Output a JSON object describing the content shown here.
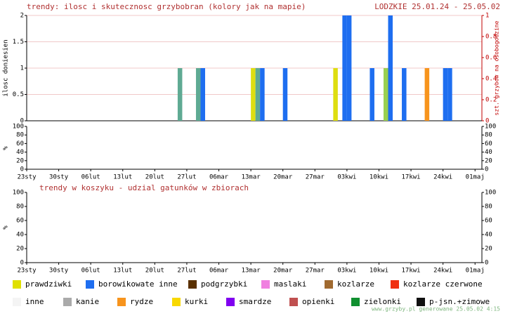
{
  "chart_data": [
    {
      "type": "bar",
      "title": "trendy: ilosc i skutecznosc grzybobran (kolory jak na mapie)",
      "subtitle": "LODZKIE 25.01.24 - 25.05.02",
      "ylabel": "ilosc doniesien",
      "y2label": "szt. grzybow na osobogodzine",
      "xlim": [
        0,
        99.5
      ],
      "ylim": [
        0,
        2
      ],
      "yticks": [
        0,
        0.5,
        1,
        1.5,
        2
      ],
      "y2lim": [
        0,
        1
      ],
      "y2ticks": [
        0,
        0.2,
        0.4,
        0.6,
        0.8,
        1
      ],
      "grid": true,
      "x": [
        33,
        37,
        38,
        49,
        50,
        51,
        56,
        67,
        69,
        70,
        75,
        78,
        79,
        82,
        87,
        91,
        92
      ],
      "values": [
        1,
        1,
        1,
        1,
        1,
        1,
        1,
        1,
        2,
        2,
        1,
        1,
        2,
        1,
        1,
        1,
        1
      ],
      "colors": [
        "#5faa93",
        "#5faa93",
        "#1e6ef0",
        "#dede10",
        "#5faa93",
        "#1e6ef0",
        "#1e6ef0",
        "#dede10",
        "#1e6ef0",
        "#1e6ef0",
        "#1e6ef0",
        "#9ad050",
        "#1e6ef0",
        "#1e6ef0",
        "#f7941d",
        "#1e6ef0",
        "#1e6ef0"
      ]
    },
    {
      "type": "area",
      "ylabel": "%",
      "xlim": [
        0,
        99.5
      ],
      "ylim": [
        0,
        100
      ],
      "yticks": [
        0,
        20,
        40,
        60,
        80,
        100
      ],
      "xticks": [
        {
          "value": 0,
          "label": "23sty"
        },
        {
          "value": 7,
          "label": "30sty"
        },
        {
          "value": 14,
          "label": "06lut"
        },
        {
          "value": 21,
          "label": "13lut"
        },
        {
          "value": 28,
          "label": "20lut"
        },
        {
          "value": 35,
          "label": "27lut"
        },
        {
          "value": 42,
          "label": "06mar"
        },
        {
          "value": 49,
          "label": "13mar"
        },
        {
          "value": 56,
          "label": "20mar"
        },
        {
          "value": 63,
          "label": "27mar"
        },
        {
          "value": 70,
          "label": "03kwi"
        },
        {
          "value": 77,
          "label": "10kwi"
        },
        {
          "value": 84,
          "label": "17kwi"
        },
        {
          "value": 91,
          "label": "24kwi"
        },
        {
          "value": 98,
          "label": "01maj"
        }
      ]
    },
    {
      "type": "area",
      "title": "trendy w koszyku - udzial gatunków w zbiorach",
      "ylabel": "%",
      "xlim": [
        0,
        99.5
      ],
      "ylim": [
        0,
        100
      ],
      "yticks": [
        0,
        20,
        40,
        60,
        80,
        100
      ],
      "xticks": [
        {
          "value": 0,
          "label": "23sty"
        },
        {
          "value": 7,
          "label": "30sty"
        },
        {
          "value": 14,
          "label": "06lut"
        },
        {
          "value": 21,
          "label": "13lut"
        },
        {
          "value": 28,
          "label": "20lut"
        },
        {
          "value": 35,
          "label": "27lut"
        },
        {
          "value": 42,
          "label": "06mar"
        },
        {
          "value": 49,
          "label": "13mar"
        },
        {
          "value": 56,
          "label": "20mar"
        },
        {
          "value": 63,
          "label": "27mar"
        },
        {
          "value": 70,
          "label": "03kwi"
        },
        {
          "value": 77,
          "label": "10kwi"
        },
        {
          "value": 84,
          "label": "17kwi"
        },
        {
          "value": 91,
          "label": "24kwi"
        },
        {
          "value": 98,
          "label": "01maj"
        }
      ]
    }
  ],
  "legend": [
    {
      "name": "prawdziwki",
      "color": "#e0e000"
    },
    {
      "name": "borowikowate inne",
      "color": "#1e6ef0"
    },
    {
      "name": "podgrzybki",
      "color": "#5a3000"
    },
    {
      "name": "maslaki",
      "color": "#f080e0"
    },
    {
      "name": "kozlarze",
      "color": "#a06a30"
    },
    {
      "name": "kozlarze czerwone",
      "color": "#f03010"
    },
    {
      "name": "inne",
      "color": "#f4f4f4"
    },
    {
      "name": "kanie",
      "color": "#aaaaaa"
    },
    {
      "name": "rydze",
      "color": "#f7941d"
    },
    {
      "name": "kurki",
      "color": "#f8d800"
    },
    {
      "name": "smardze",
      "color": "#8000f0"
    },
    {
      "name": "opienki",
      "color": "#c05050"
    },
    {
      "name": "zielonki",
      "color": "#109030"
    },
    {
      "name": "p-jsn.+zimowe",
      "color": "#101010"
    }
  ],
  "footer": "www.grzyby.pl generowane 25.05.02 4:15"
}
